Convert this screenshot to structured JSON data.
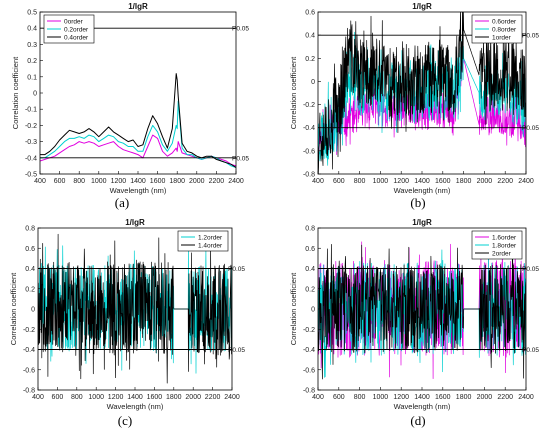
{
  "chart_data": [
    {
      "type": "line",
      "title": "1/lgR",
      "subtitle": "(a)",
      "xlabel": "Wavelength  (nm)",
      "ylabel": "Correlation coefficient",
      "xlim": [
        400,
        2400
      ],
      "ylim": [
        -0.5,
        0.5
      ],
      "xticks": [
        "400",
        "600",
        "800",
        "1000",
        "1200",
        "1400",
        "1600",
        "1800",
        "2000",
        "2200",
        "2400"
      ],
      "yticks": [
        "-0.5",
        "-0.4",
        "-0.3",
        "-0.2",
        "-0.1",
        "0",
        "0.1",
        "0.2",
        "0.3",
        "0.4",
        "0.5"
      ],
      "threshold": {
        "values": [
          0.4,
          -0.4
        ],
        "label": "P0.05"
      },
      "legend_position": "top-left",
      "series": [
        {
          "name": "0order",
          "color": "#e000e0",
          "style": "smooth",
          "x": [
            400,
            450,
            500,
            550,
            600,
            650,
            700,
            750,
            800,
            850,
            900,
            950,
            1000,
            1050,
            1100,
            1150,
            1200,
            1250,
            1300,
            1350,
            1400,
            1450,
            1500,
            1550,
            1600,
            1650,
            1700,
            1750,
            1790,
            1800,
            1810,
            1850,
            1900,
            1950,
            2000,
            2050,
            2100,
            2150,
            2200,
            2250,
            2300,
            2350,
            2400
          ],
          "y": [
            -0.42,
            -0.41,
            -0.4,
            -0.39,
            -0.37,
            -0.35,
            -0.33,
            -0.32,
            -0.3,
            -0.31,
            -0.3,
            -0.31,
            -0.33,
            -0.32,
            -0.31,
            -0.3,
            -0.33,
            -0.35,
            -0.36,
            -0.37,
            -0.38,
            -0.4,
            -0.33,
            -0.26,
            -0.28,
            -0.36,
            -0.39,
            -0.37,
            -0.34,
            -0.36,
            -0.3,
            -0.37,
            -0.38,
            -0.39,
            -0.4,
            -0.41,
            -0.4,
            -0.39,
            -0.4,
            -0.41,
            -0.42,
            -0.44,
            -0.45
          ]
        },
        {
          "name": "0.2order",
          "color": "#00d0d0",
          "style": "smooth",
          "x": [
            400,
            450,
            500,
            550,
            600,
            650,
            700,
            750,
            800,
            850,
            900,
            950,
            1000,
            1050,
            1100,
            1150,
            1200,
            1250,
            1300,
            1350,
            1400,
            1450,
            1500,
            1550,
            1600,
            1650,
            1700,
            1750,
            1790,
            1800,
            1810,
            1850,
            1900,
            1950,
            2000,
            2050,
            2100,
            2150,
            2200,
            2250,
            2300,
            2350,
            2400
          ],
          "y": [
            -0.4,
            -0.4,
            -0.38,
            -0.36,
            -0.33,
            -0.3,
            -0.28,
            -0.28,
            -0.27,
            -0.28,
            -0.26,
            -0.27,
            -0.3,
            -0.28,
            -0.26,
            -0.27,
            -0.3,
            -0.31,
            -0.33,
            -0.33,
            -0.36,
            -0.36,
            -0.27,
            -0.2,
            -0.24,
            -0.32,
            -0.36,
            -0.31,
            -0.2,
            -0.22,
            -0.05,
            -0.34,
            -0.38,
            -0.38,
            -0.4,
            -0.41,
            -0.4,
            -0.39,
            -0.4,
            -0.42,
            -0.43,
            -0.45,
            -0.46
          ]
        },
        {
          "name": "0.4order",
          "color": "#000000",
          "style": "smooth",
          "x": [
            400,
            450,
            500,
            550,
            600,
            650,
            700,
            750,
            800,
            850,
            900,
            950,
            1000,
            1050,
            1100,
            1150,
            1200,
            1250,
            1300,
            1350,
            1400,
            1450,
            1500,
            1550,
            1600,
            1650,
            1700,
            1750,
            1790,
            1800,
            1810,
            1850,
            1900,
            1950,
            2000,
            2050,
            2100,
            2150,
            2200,
            2250,
            2300,
            2350,
            2400
          ],
          "y": [
            -0.38,
            -0.38,
            -0.36,
            -0.33,
            -0.29,
            -0.26,
            -0.23,
            -0.24,
            -0.25,
            -0.24,
            -0.22,
            -0.24,
            -0.27,
            -0.24,
            -0.21,
            -0.24,
            -0.26,
            -0.28,
            -0.3,
            -0.29,
            -0.33,
            -0.32,
            -0.22,
            -0.14,
            -0.19,
            -0.27,
            -0.34,
            -0.22,
            0.12,
            0.08,
            -0.02,
            -0.31,
            -0.36,
            -0.37,
            -0.39,
            -0.4,
            -0.39,
            -0.39,
            -0.41,
            -0.42,
            -0.43,
            -0.44,
            -0.46
          ]
        }
      ]
    },
    {
      "type": "line",
      "title": "1/lgR",
      "subtitle": "(b)",
      "xlabel": "Wavelength  (nm)",
      "ylabel": "Correlation coefficient",
      "xlim": [
        400,
        2400
      ],
      "ylim": [
        -0.8,
        0.6
      ],
      "xticks": [
        "400",
        "600",
        "800",
        "1000",
        "1200",
        "1400",
        "1600",
        "1800",
        "2000",
        "2200",
        "2400"
      ],
      "yticks": [
        "-0.8",
        "-0.6",
        "-0.4",
        "-0.2",
        "0",
        "0.2",
        "0.4",
        "0.6"
      ],
      "threshold": {
        "values": [
          0.4,
          -0.4
        ],
        "label": "P0.05"
      },
      "legend_position": "top-right",
      "series": [
        {
          "name": "0.6order",
          "color": "#e000e0",
          "style": "noisy",
          "seed": 11,
          "amp": 0.16,
          "gap": [
            1800,
            1950
          ],
          "x": [
            400,
            500,
            600,
            700,
            800,
            900,
            1000,
            1100,
            1200,
            1300,
            1400,
            1500,
            1600,
            1700,
            1800,
            1950,
            2000,
            2100,
            2200,
            2300,
            2400
          ],
          "y": [
            -0.5,
            -0.46,
            -0.4,
            -0.3,
            -0.28,
            -0.2,
            -0.22,
            -0.25,
            -0.24,
            -0.26,
            -0.28,
            -0.25,
            -0.24,
            -0.3,
            0.2,
            -0.38,
            -0.32,
            -0.3,
            -0.31,
            -0.34,
            -0.42
          ]
        },
        {
          "name": "0.8order",
          "color": "#00d0d0",
          "style": "noisy",
          "seed": 23,
          "amp": 0.26,
          "gap": [
            1800,
            1950
          ],
          "x": [
            400,
            500,
            600,
            700,
            800,
            900,
            1000,
            1100,
            1200,
            1300,
            1400,
            1500,
            1600,
            1700,
            1800,
            1950,
            2000,
            2100,
            2200,
            2300,
            2400
          ],
          "y": [
            -0.48,
            -0.42,
            -0.32,
            0.1,
            -0.05,
            0.0,
            -0.05,
            -0.1,
            -0.08,
            -0.1,
            -0.12,
            -0.08,
            -0.06,
            -0.15,
            0.2,
            -0.1,
            -0.08,
            -0.06,
            -0.08,
            -0.12,
            -0.22
          ]
        },
        {
          "name": "1order",
          "color": "#000000",
          "style": "noisy",
          "seed": 37,
          "amp": 0.32,
          "gap": [
            1800,
            1950
          ],
          "x": [
            400,
            500,
            600,
            700,
            800,
            900,
            1000,
            1100,
            1200,
            1300,
            1400,
            1500,
            1600,
            1700,
            1800,
            1950,
            2000,
            2100,
            2200,
            2300,
            2400
          ],
          "y": [
            -0.45,
            -0.38,
            -0.2,
            0.25,
            0.05,
            0.08,
            0.05,
            0.0,
            0.04,
            0.0,
            -0.02,
            0.05,
            0.04,
            -0.05,
            0.45,
            0.05,
            0.05,
            0.08,
            0.05,
            0.02,
            -0.05
          ]
        }
      ]
    },
    {
      "type": "line",
      "title": "1/lgR",
      "subtitle": "(c)",
      "xlabel": "Wavelength  (nm)",
      "ylabel": "Correlation coefficient",
      "xlim": [
        400,
        2400
      ],
      "ylim": [
        -0.8,
        0.8
      ],
      "xticks": [
        "400",
        "600",
        "800",
        "1000",
        "1200",
        "1400",
        "1600",
        "1800",
        "2000",
        "2200",
        "2400"
      ],
      "yticks": [
        "-0.8",
        "-0.6",
        "-0.4",
        "-0.2",
        "0",
        "0.2",
        "0.4",
        "0.6",
        "0.8"
      ],
      "threshold": {
        "values": [
          0.4,
          -0.4
        ],
        "label": "P0.05"
      },
      "legend_position": "top-right",
      "series": [
        {
          "name": "1.2order",
          "color": "#00d0d0",
          "style": "noisy",
          "seed": 51,
          "amp": 0.42,
          "gap": [
            1800,
            1950
          ],
          "x": [
            400,
            500,
            600,
            800,
            1000,
            1200,
            1400,
            1600,
            1800,
            1950,
            2000,
            2200,
            2400
          ],
          "y": [
            0.05,
            0.0,
            0.02,
            0.0,
            0.02,
            0.0,
            0.03,
            0.0,
            0.0,
            0.0,
            0.02,
            0.0,
            0.0
          ]
        },
        {
          "name": "1.4order",
          "color": "#000000",
          "style": "noisy",
          "seed": 67,
          "amp": 0.46,
          "gap": [
            1800,
            1950
          ],
          "x": [
            400,
            500,
            600,
            800,
            1000,
            1200,
            1400,
            1600,
            1800,
            1950,
            2000,
            2200,
            2400
          ],
          "y": [
            0.08,
            0.0,
            0.02,
            0.0,
            0.02,
            0.0,
            0.03,
            0.0,
            0.0,
            0.0,
            0.02,
            0.0,
            0.0
          ]
        }
      ]
    },
    {
      "type": "line",
      "title": "1/lgR",
      "subtitle": "(d)",
      "xlabel": "Wavelength  (nm)",
      "ylabel": "Correlation coefficient",
      "xlim": [
        400,
        2400
      ],
      "ylim": [
        -0.8,
        0.8
      ],
      "xticks": [
        "400",
        "600",
        "800",
        "1000",
        "1200",
        "1400",
        "1600",
        "1800",
        "2000",
        "2200",
        "2400"
      ],
      "yticks": [
        "-0.8",
        "-0.6",
        "-0.4",
        "-0.2",
        "0",
        "0.2",
        "0.4",
        "0.6",
        "0.8"
      ],
      "threshold": {
        "values": [
          0.4,
          -0.4
        ],
        "label": "P0.05"
      },
      "legend_position": "top-right",
      "series": [
        {
          "name": "1.6order",
          "color": "#e000e0",
          "style": "noisy",
          "seed": 79,
          "amp": 0.48,
          "gap": [
            1800,
            1950
          ],
          "x": [
            400,
            600,
            800,
            1000,
            1200,
            1400,
            1600,
            1800,
            1950,
            2200,
            2400
          ],
          "y": [
            0,
            0,
            0,
            0,
            0,
            0,
            0,
            0,
            0,
            0,
            0
          ]
        },
        {
          "name": "1.8order",
          "color": "#00d0d0",
          "style": "noisy",
          "seed": 83,
          "amp": 0.46,
          "gap": [
            1800,
            1950
          ],
          "x": [
            400,
            600,
            800,
            1000,
            1200,
            1400,
            1600,
            1800,
            1950,
            2200,
            2400
          ],
          "y": [
            0,
            0,
            0,
            0,
            0,
            0,
            0,
            0,
            0,
            0,
            0
          ]
        },
        {
          "name": "2order",
          "color": "#000000",
          "style": "noisy",
          "seed": 97,
          "amp": 0.44,
          "gap": [
            1800,
            1950
          ],
          "x": [
            400,
            600,
            800,
            1000,
            1200,
            1400,
            1600,
            1800,
            1950,
            2200,
            2400
          ],
          "y": [
            0,
            0,
            0,
            0,
            0,
            0,
            0,
            0,
            0,
            0,
            0
          ]
        }
      ]
    }
  ]
}
